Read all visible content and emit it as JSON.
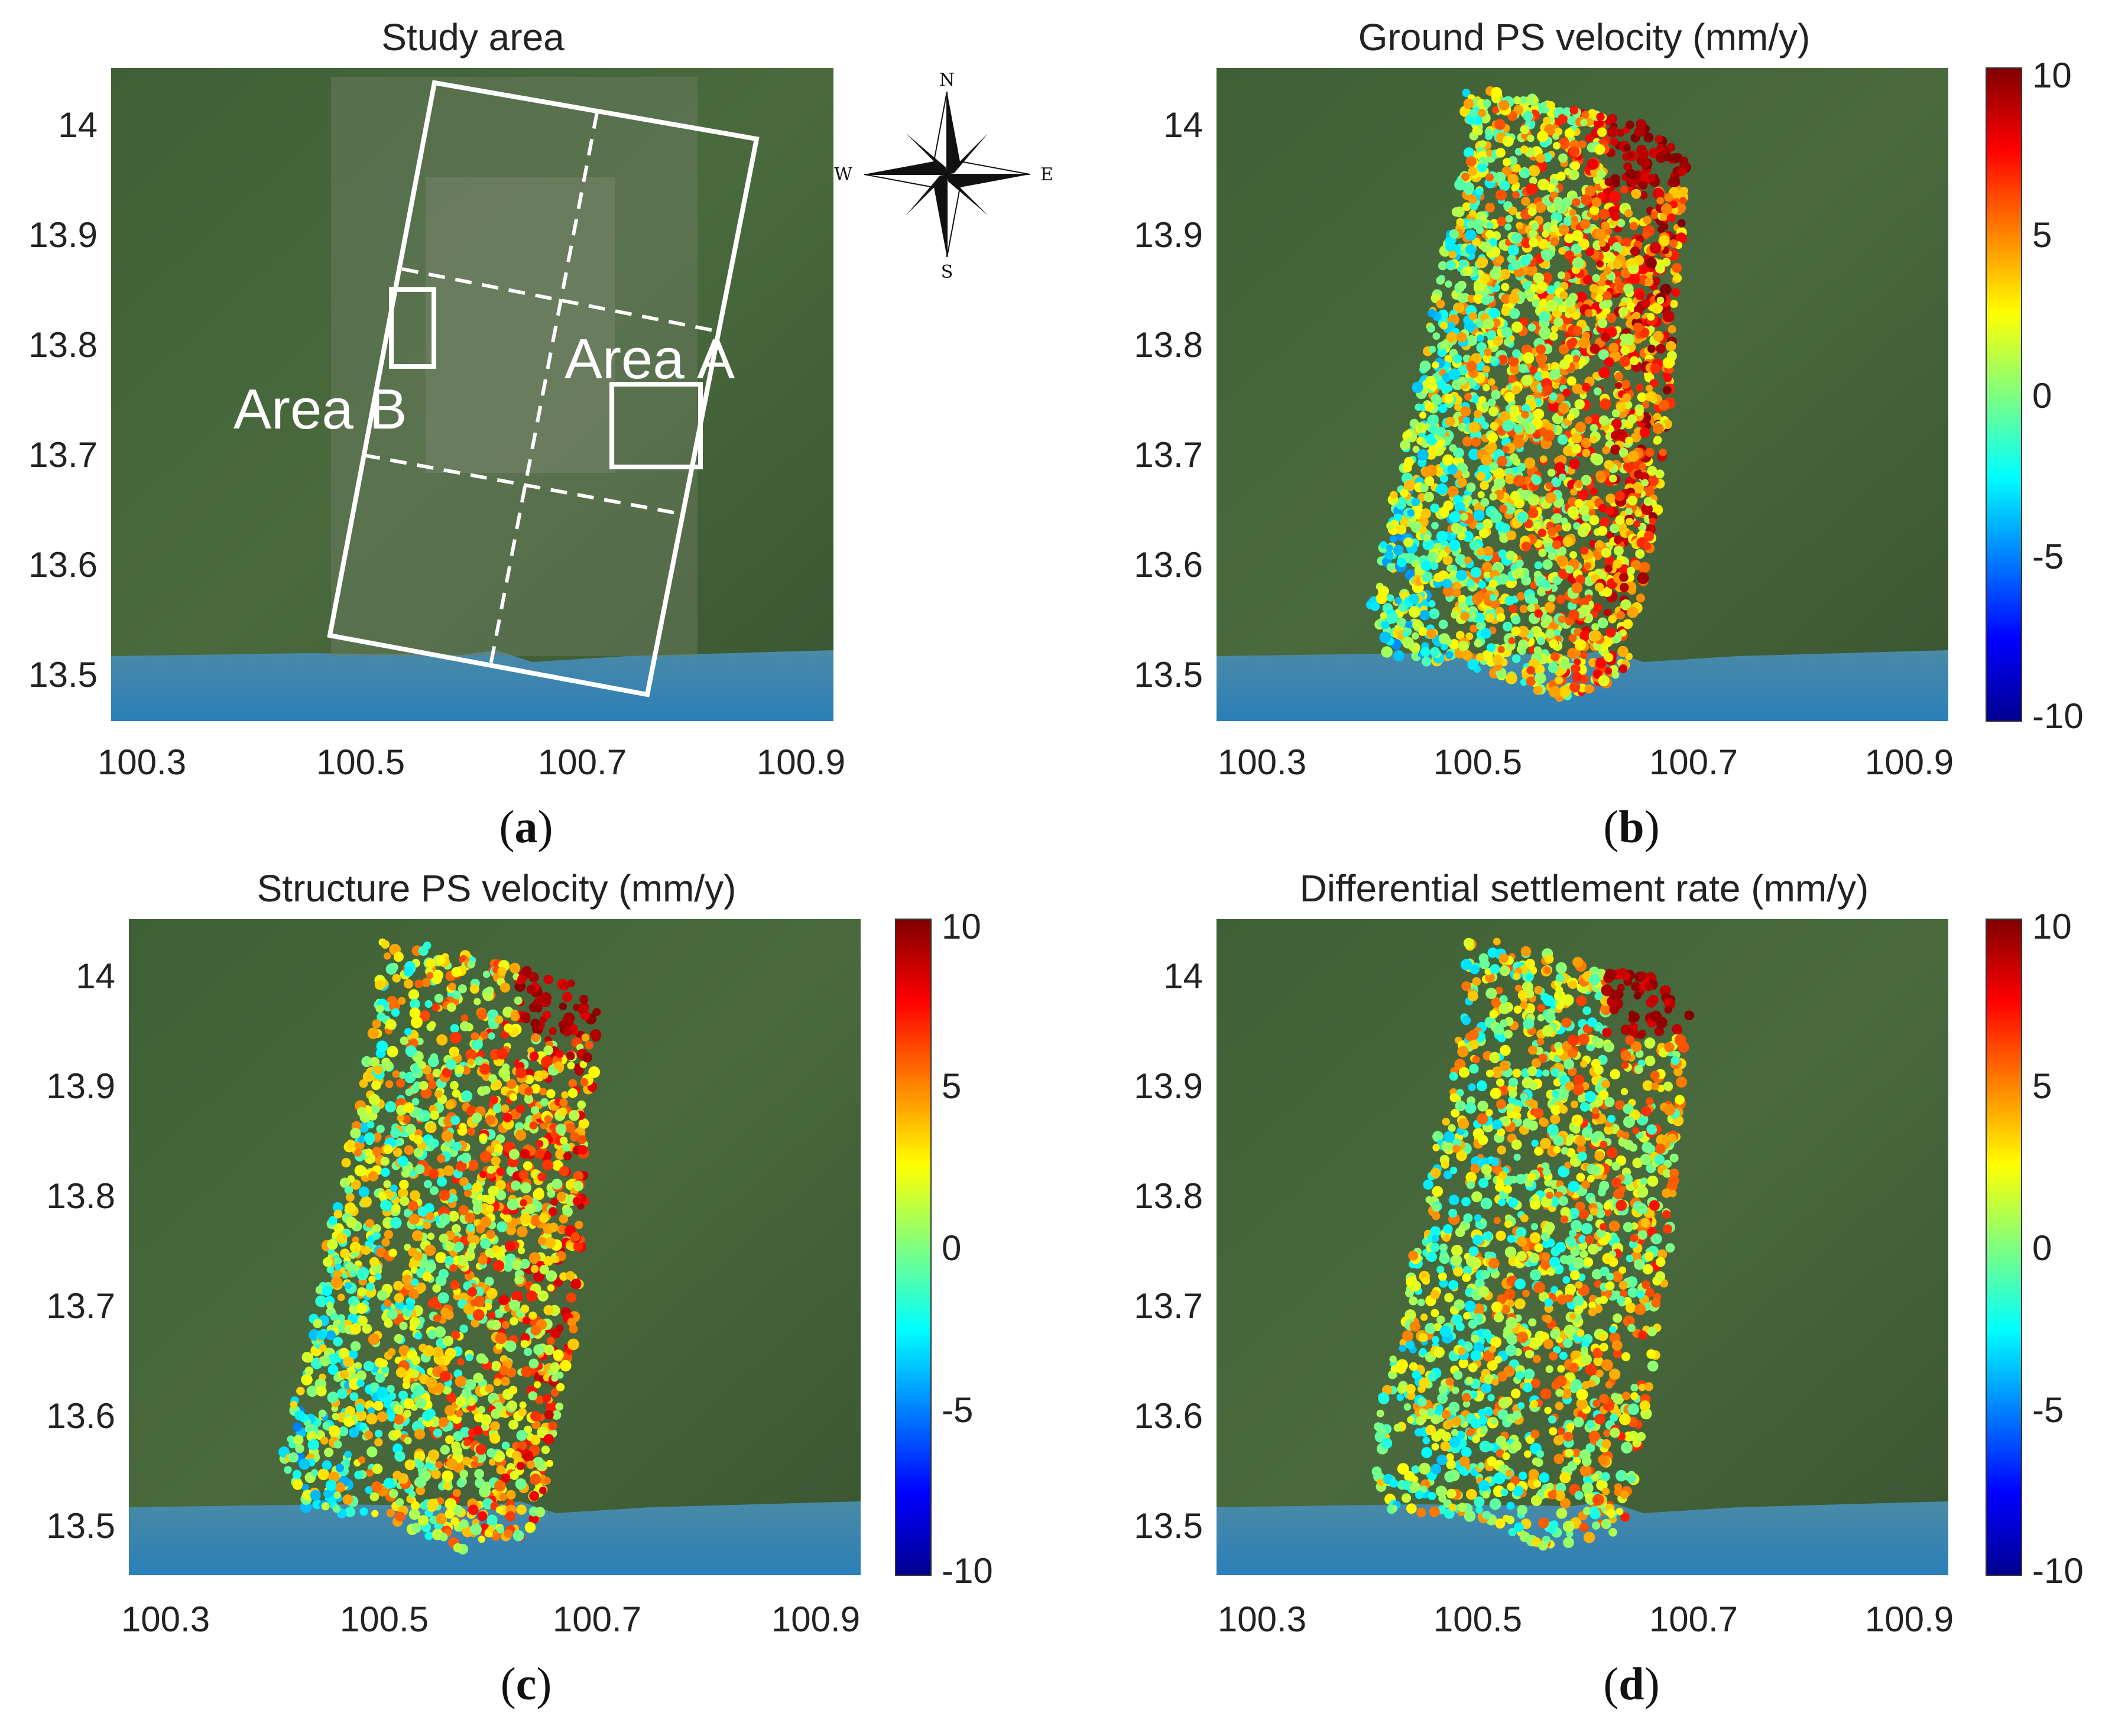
{
  "figure": {
    "panels": [
      {
        "id": "a",
        "title": "Study area",
        "caption_letter": "a",
        "has_colorbar": false
      },
      {
        "id": "b",
        "title": "Ground PS velocity (mm/y)",
        "caption_letter": "b",
        "has_colorbar": true
      },
      {
        "id": "c",
        "title": "Structure PS velocity (mm/y)",
        "caption_letter": "c",
        "has_colorbar": true
      },
      {
        "id": "d",
        "title": "Differential settlement rate (mm/y)",
        "caption_letter": "d",
        "has_colorbar": true
      }
    ],
    "x_ticks": [
      "100.3",
      "100.5",
      "100.7",
      "100.9"
    ],
    "y_ticks": [
      "14",
      "13.9",
      "13.8",
      "13.7",
      "13.6",
      "13.5"
    ],
    "colorbar_ticks": [
      "10",
      "5",
      "0",
      "-5",
      "-10"
    ],
    "area_labels": {
      "a": "Area A",
      "b": "Area B"
    },
    "compass": {
      "n": "N",
      "s": "S",
      "e": "E",
      "w": "W"
    },
    "colors": {
      "land": "#3c5a33",
      "sea": "#2f86b5",
      "outline": "#ffffff"
    }
  },
  "chart_data": {
    "type": "map",
    "x_range": [
      100.25,
      100.92
    ],
    "y_range": [
      13.45,
      14.04
    ],
    "colorbar_range": [
      -10,
      10
    ],
    "colormap": "jet"
  }
}
